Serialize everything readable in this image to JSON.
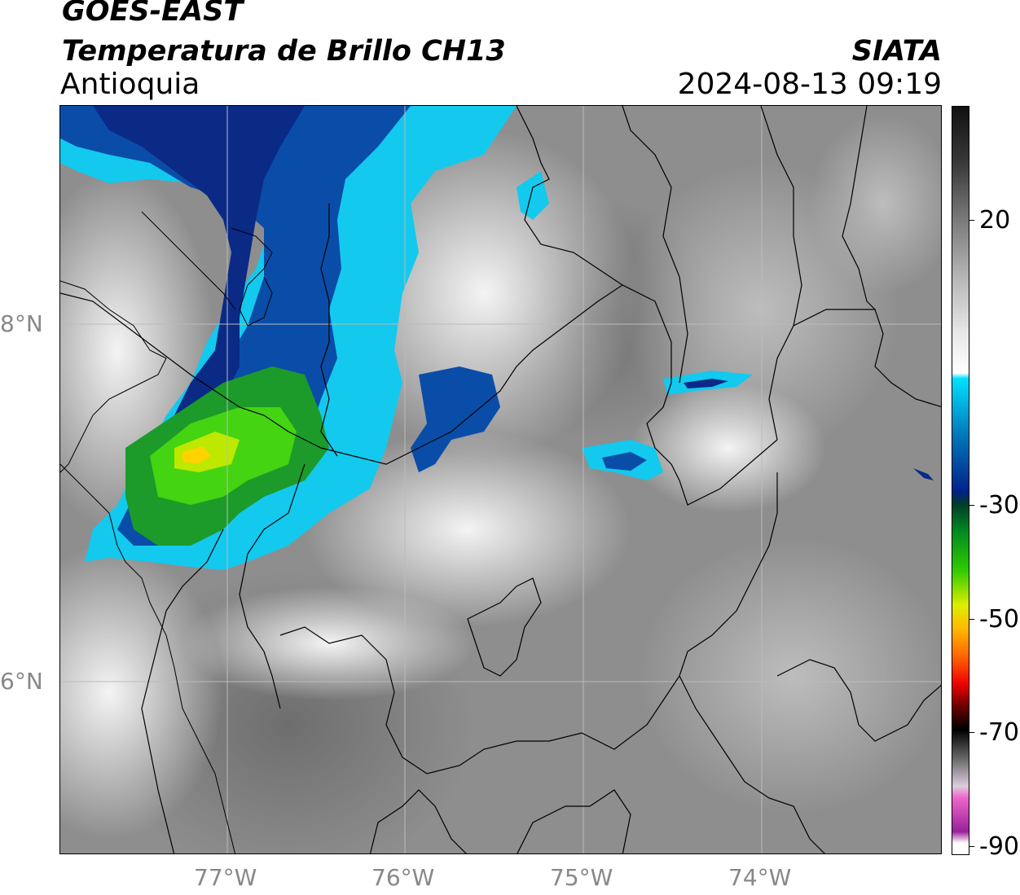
{
  "header": {
    "source": "GOES-EAST",
    "product": "Temperatura de Brillo CH13",
    "region": "Antioquia",
    "org": "SIATA",
    "datetime": "2024-08-13 09:19"
  },
  "map": {
    "lat_labels": [
      "8°N",
      "6°N"
    ],
    "lon_labels": [
      "77°W",
      "76°W",
      "75°W",
      "74°W"
    ],
    "grid_color": "#bbbbbb",
    "border_color": "#000000"
  },
  "colorbar": {
    "ticks": [
      "20",
      "-30",
      "-50",
      "-70",
      "-90"
    ],
    "stops": [
      {
        "v": 40,
        "color": "#111111"
      },
      {
        "v": 30,
        "color": "#3a3a3a"
      },
      {
        "v": 20,
        "color": "#7a7a7a"
      },
      {
        "v": 10,
        "color": "#b5b5b5"
      },
      {
        "v": 0,
        "color": "#e8e8e8"
      },
      {
        "v": -7,
        "color": "#ffffff"
      },
      {
        "v": -8,
        "color": "#00e1ff"
      },
      {
        "v": -18,
        "color": "#0077bb"
      },
      {
        "v": -28,
        "color": "#002288"
      },
      {
        "v": -30,
        "color": "#003a2a"
      },
      {
        "v": -35,
        "color": "#008a22"
      },
      {
        "v": -42,
        "color": "#33cc00"
      },
      {
        "v": -48,
        "color": "#ddee00"
      },
      {
        "v": -52,
        "color": "#ffbb00"
      },
      {
        "v": -57,
        "color": "#ff6600"
      },
      {
        "v": -62,
        "color": "#ee0000"
      },
      {
        "v": -66,
        "color": "#660000"
      },
      {
        "v": -70,
        "color": "#000000"
      },
      {
        "v": -75,
        "color": "#666666"
      },
      {
        "v": -80,
        "color": "#ddccdd"
      },
      {
        "v": -82,
        "color": "#ee66cc"
      },
      {
        "v": -88,
        "color": "#992299"
      },
      {
        "v": -90,
        "color": "#ffffff"
      }
    ]
  }
}
